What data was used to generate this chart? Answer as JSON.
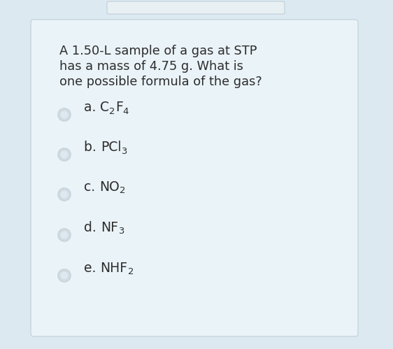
{
  "bg_outer": "#dde9f1",
  "bg_card": "#eaf3f8",
  "card_edge_color": "#c5d5de",
  "question_lines": [
    "A 1.50-L sample of a gas at STP",
    "has a mass of 4.75 g. What is",
    "one possible formula of the gas?"
  ],
  "options": [
    {
      "label": "a. ",
      "parts": [
        [
          "C",
          false
        ],
        [
          "2",
          true
        ],
        [
          "F",
          false
        ],
        [
          "4",
          true
        ]
      ]
    },
    {
      "label": "b. ",
      "parts": [
        [
          "PCl",
          false
        ],
        [
          "3",
          true
        ]
      ]
    },
    {
      "label": "c. ",
      "parts": [
        [
          "NO",
          false
        ],
        [
          "2",
          true
        ]
      ]
    },
    {
      "label": "d. ",
      "parts": [
        [
          "NF",
          false
        ],
        [
          "3",
          true
        ]
      ]
    },
    {
      "label": "e. ",
      "parts": [
        [
          "NHF",
          false
        ],
        [
          "2",
          true
        ]
      ]
    }
  ],
  "text_color": "#2d2d2d",
  "question_fontsize": 12.8,
  "option_fontsize": 13.5,
  "radio_outer_color": "#c8d4da",
  "radio_inner_light": "#e0eaf0",
  "top_input_color": "#e8f0f4",
  "top_input_border": "#c0cfd8"
}
